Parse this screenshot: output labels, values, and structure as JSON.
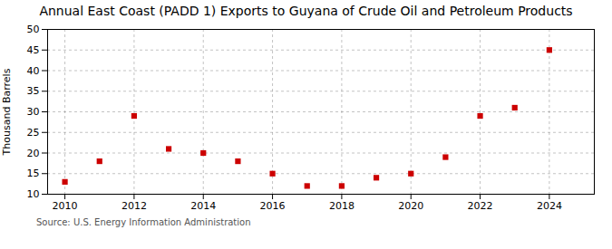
{
  "chart_data": {
    "type": "scatter",
    "title": "Annual East Coast (PADD 1) Exports to Guyana of Crude Oil and Petroleum Products",
    "ylabel": "Thousand Barrels",
    "source": "Source: U.S. Energy Information Administration",
    "x": [
      2010,
      2011,
      2012,
      2013,
      2014,
      2015,
      2016,
      2017,
      2018,
      2019,
      2020,
      2021,
      2022,
      2023,
      2024
    ],
    "values": [
      13,
      18,
      29,
      21,
      20,
      18,
      15,
      12,
      12,
      14,
      15,
      19,
      29,
      31,
      45
    ],
    "color": "#cc0000",
    "marker": "square",
    "xlim": [
      2009.5,
      2025.3
    ],
    "xticks": [
      2010,
      2012,
      2014,
      2016,
      2018,
      2020,
      2022,
      2024
    ],
    "ylim": [
      10,
      50
    ],
    "yticks": [
      10,
      15,
      20,
      25,
      30,
      35,
      40,
      45,
      50
    ],
    "grid": true
  }
}
